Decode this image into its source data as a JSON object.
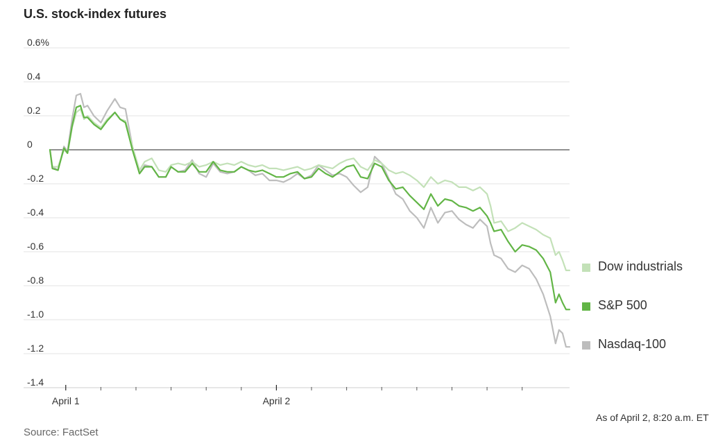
{
  "chart_data": {
    "type": "line",
    "title": "U.S. stock-index futures",
    "source": "Source: FactSet",
    "note": "As of April 2, 8:20 a.m. ET",
    "y_unit_suffix": "%",
    "ylim": [
      -1.4,
      0.6
    ],
    "yticks": [
      0.6,
      0.4,
      0.2,
      0,
      -0.2,
      -0.4,
      -0.6,
      -0.8,
      -1.0,
      -1.2,
      -1.4
    ],
    "ytick_labels": [
      "0.6%",
      "0.4",
      "0.2",
      "0",
      "-0.2",
      "-0.4",
      "-0.6",
      "-0.8",
      "-1.0",
      "-1.2",
      "-1.4"
    ],
    "x_day_labels": [
      "April 1",
      "April 2"
    ],
    "x_major_ticks": [
      1,
      7
    ],
    "x_minor_ticks": [
      2,
      3,
      4,
      5,
      6,
      8,
      9,
      10,
      11,
      12,
      13,
      14
    ],
    "xlim": [
      0.55,
      15.35
    ],
    "grid": true,
    "legend_position": "right",
    "series": [
      {
        "name": "Dow industrials",
        "color": "#c3e1b8",
        "points": [
          [
            0.55,
            0.0
          ],
          [
            0.62,
            -0.1
          ],
          [
            0.78,
            -0.1
          ],
          [
            0.95,
            0.0
          ],
          [
            1.05,
            -0.02
          ],
          [
            1.18,
            0.13
          ],
          [
            1.3,
            0.22
          ],
          [
            1.42,
            0.24
          ],
          [
            1.52,
            0.18
          ],
          [
            1.62,
            0.2
          ],
          [
            1.8,
            0.16
          ],
          [
            2.0,
            0.13
          ],
          [
            2.18,
            0.18
          ],
          [
            2.4,
            0.22
          ],
          [
            2.55,
            0.18
          ],
          [
            2.7,
            0.17
          ],
          [
            2.9,
            0.02
          ],
          [
            3.1,
            -0.12
          ],
          [
            3.25,
            -0.07
          ],
          [
            3.45,
            -0.05
          ],
          [
            3.65,
            -0.12
          ],
          [
            3.85,
            -0.13
          ],
          [
            4.0,
            -0.09
          ],
          [
            4.2,
            -0.08
          ],
          [
            4.4,
            -0.09
          ],
          [
            4.6,
            -0.07
          ],
          [
            4.8,
            -0.1
          ],
          [
            5.0,
            -0.09
          ],
          [
            5.2,
            -0.07
          ],
          [
            5.4,
            -0.09
          ],
          [
            5.6,
            -0.08
          ],
          [
            5.8,
            -0.09
          ],
          [
            6.0,
            -0.07
          ],
          [
            6.2,
            -0.09
          ],
          [
            6.4,
            -0.1
          ],
          [
            6.6,
            -0.09
          ],
          [
            6.8,
            -0.11
          ],
          [
            7.0,
            -0.11
          ],
          [
            7.2,
            -0.12
          ],
          [
            7.4,
            -0.11
          ],
          [
            7.6,
            -0.1
          ],
          [
            7.8,
            -0.12
          ],
          [
            8.0,
            -0.11
          ],
          [
            8.2,
            -0.09
          ],
          [
            8.4,
            -0.1
          ],
          [
            8.6,
            -0.11
          ],
          [
            8.8,
            -0.08
          ],
          [
            9.0,
            -0.06
          ],
          [
            9.2,
            -0.05
          ],
          [
            9.4,
            -0.1
          ],
          [
            9.6,
            -0.12
          ],
          [
            9.8,
            -0.06
          ],
          [
            10.0,
            -0.08
          ],
          [
            10.2,
            -0.12
          ],
          [
            10.4,
            -0.14
          ],
          [
            10.6,
            -0.13
          ],
          [
            10.8,
            -0.15
          ],
          [
            11.0,
            -0.18
          ],
          [
            11.2,
            -0.22
          ],
          [
            11.4,
            -0.16
          ],
          [
            11.6,
            -0.2
          ],
          [
            11.8,
            -0.18
          ],
          [
            12.0,
            -0.19
          ],
          [
            12.2,
            -0.22
          ],
          [
            12.4,
            -0.22
          ],
          [
            12.6,
            -0.24
          ],
          [
            12.8,
            -0.22
          ],
          [
            13.0,
            -0.26
          ],
          [
            13.1,
            -0.33
          ],
          [
            13.2,
            -0.43
          ],
          [
            13.4,
            -0.42
          ],
          [
            13.6,
            -0.48
          ],
          [
            13.8,
            -0.46
          ],
          [
            14.0,
            -0.43
          ],
          [
            14.2,
            -0.45
          ],
          [
            14.4,
            -0.47
          ],
          [
            14.6,
            -0.5
          ],
          [
            14.8,
            -0.52
          ],
          [
            14.95,
            -0.62
          ],
          [
            15.05,
            -0.6
          ],
          [
            15.15,
            -0.65
          ],
          [
            15.25,
            -0.71
          ],
          [
            15.35,
            -0.71
          ]
        ]
      },
      {
        "name": "S&P 500",
        "color": "#62b546",
        "points": [
          [
            0.55,
            0.0
          ],
          [
            0.62,
            -0.11
          ],
          [
            0.78,
            -0.12
          ],
          [
            0.95,
            0.01
          ],
          [
            1.05,
            -0.02
          ],
          [
            1.18,
            0.14
          ],
          [
            1.3,
            0.25
          ],
          [
            1.42,
            0.26
          ],
          [
            1.52,
            0.19
          ],
          [
            1.62,
            0.19
          ],
          [
            1.8,
            0.15
          ],
          [
            2.0,
            0.12
          ],
          [
            2.18,
            0.17
          ],
          [
            2.4,
            0.22
          ],
          [
            2.55,
            0.18
          ],
          [
            2.7,
            0.16
          ],
          [
            2.9,
            0.0
          ],
          [
            3.1,
            -0.14
          ],
          [
            3.25,
            -0.1
          ],
          [
            3.45,
            -0.1
          ],
          [
            3.65,
            -0.16
          ],
          [
            3.85,
            -0.16
          ],
          [
            4.0,
            -0.1
          ],
          [
            4.2,
            -0.13
          ],
          [
            4.4,
            -0.13
          ],
          [
            4.6,
            -0.08
          ],
          [
            4.8,
            -0.13
          ],
          [
            5.0,
            -0.13
          ],
          [
            5.2,
            -0.07
          ],
          [
            5.4,
            -0.12
          ],
          [
            5.6,
            -0.13
          ],
          [
            5.8,
            -0.13
          ],
          [
            6.0,
            -0.1
          ],
          [
            6.2,
            -0.12
          ],
          [
            6.4,
            -0.13
          ],
          [
            6.6,
            -0.12
          ],
          [
            6.8,
            -0.14
          ],
          [
            7.0,
            -0.16
          ],
          [
            7.2,
            -0.16
          ],
          [
            7.4,
            -0.14
          ],
          [
            7.6,
            -0.13
          ],
          [
            7.8,
            -0.17
          ],
          [
            8.0,
            -0.16
          ],
          [
            8.2,
            -0.11
          ],
          [
            8.4,
            -0.14
          ],
          [
            8.6,
            -0.16
          ],
          [
            8.8,
            -0.13
          ],
          [
            9.0,
            -0.1
          ],
          [
            9.2,
            -0.09
          ],
          [
            9.4,
            -0.16
          ],
          [
            9.6,
            -0.17
          ],
          [
            9.8,
            -0.08
          ],
          [
            10.0,
            -0.1
          ],
          [
            10.2,
            -0.18
          ],
          [
            10.4,
            -0.23
          ],
          [
            10.6,
            -0.22
          ],
          [
            10.8,
            -0.27
          ],
          [
            11.0,
            -0.31
          ],
          [
            11.2,
            -0.35
          ],
          [
            11.4,
            -0.26
          ],
          [
            11.6,
            -0.33
          ],
          [
            11.8,
            -0.29
          ],
          [
            12.0,
            -0.3
          ],
          [
            12.2,
            -0.33
          ],
          [
            12.4,
            -0.34
          ],
          [
            12.6,
            -0.36
          ],
          [
            12.8,
            -0.34
          ],
          [
            13.0,
            -0.39
          ],
          [
            13.1,
            -0.43
          ],
          [
            13.2,
            -0.48
          ],
          [
            13.4,
            -0.47
          ],
          [
            13.6,
            -0.54
          ],
          [
            13.8,
            -0.6
          ],
          [
            14.0,
            -0.56
          ],
          [
            14.2,
            -0.57
          ],
          [
            14.4,
            -0.59
          ],
          [
            14.6,
            -0.64
          ],
          [
            14.8,
            -0.72
          ],
          [
            14.95,
            -0.9
          ],
          [
            15.05,
            -0.85
          ],
          [
            15.15,
            -0.9
          ],
          [
            15.25,
            -0.94
          ],
          [
            15.35,
            -0.94
          ]
        ]
      },
      {
        "name": "Nasdaq-100",
        "color": "#bdbdbd",
        "points": [
          [
            0.55,
            0.0
          ],
          [
            0.62,
            -0.1
          ],
          [
            0.78,
            -0.12
          ],
          [
            0.95,
            0.02
          ],
          [
            1.05,
            -0.01
          ],
          [
            1.18,
            0.18
          ],
          [
            1.3,
            0.32
          ],
          [
            1.42,
            0.33
          ],
          [
            1.52,
            0.25
          ],
          [
            1.62,
            0.26
          ],
          [
            1.8,
            0.2
          ],
          [
            2.0,
            0.16
          ],
          [
            2.18,
            0.23
          ],
          [
            2.4,
            0.3
          ],
          [
            2.55,
            0.25
          ],
          [
            2.7,
            0.24
          ],
          [
            2.9,
            0.02
          ],
          [
            3.1,
            -0.14
          ],
          [
            3.25,
            -0.09
          ],
          [
            3.45,
            -0.1
          ],
          [
            3.65,
            -0.16
          ],
          [
            3.85,
            -0.16
          ],
          [
            4.0,
            -0.1
          ],
          [
            4.2,
            -0.13
          ],
          [
            4.4,
            -0.12
          ],
          [
            4.6,
            -0.06
          ],
          [
            4.8,
            -0.14
          ],
          [
            5.0,
            -0.16
          ],
          [
            5.2,
            -0.08
          ],
          [
            5.4,
            -0.13
          ],
          [
            5.6,
            -0.14
          ],
          [
            5.8,
            -0.13
          ],
          [
            6.0,
            -0.1
          ],
          [
            6.2,
            -0.12
          ],
          [
            6.4,
            -0.15
          ],
          [
            6.6,
            -0.14
          ],
          [
            6.8,
            -0.18
          ],
          [
            7.0,
            -0.18
          ],
          [
            7.2,
            -0.19
          ],
          [
            7.4,
            -0.17
          ],
          [
            7.6,
            -0.14
          ],
          [
            7.8,
            -0.17
          ],
          [
            8.0,
            -0.15
          ],
          [
            8.2,
            -0.09
          ],
          [
            8.4,
            -0.12
          ],
          [
            8.6,
            -0.15
          ],
          [
            8.8,
            -0.14
          ],
          [
            9.0,
            -0.16
          ],
          [
            9.2,
            -0.21
          ],
          [
            9.4,
            -0.25
          ],
          [
            9.6,
            -0.22
          ],
          [
            9.8,
            -0.04
          ],
          [
            10.0,
            -0.08
          ],
          [
            10.2,
            -0.17
          ],
          [
            10.4,
            -0.26
          ],
          [
            10.6,
            -0.29
          ],
          [
            10.8,
            -0.36
          ],
          [
            11.0,
            -0.4
          ],
          [
            11.2,
            -0.46
          ],
          [
            11.4,
            -0.34
          ],
          [
            11.6,
            -0.43
          ],
          [
            11.8,
            -0.37
          ],
          [
            12.0,
            -0.36
          ],
          [
            12.2,
            -0.41
          ],
          [
            12.4,
            -0.44
          ],
          [
            12.6,
            -0.46
          ],
          [
            12.8,
            -0.41
          ],
          [
            13.0,
            -0.45
          ],
          [
            13.1,
            -0.55
          ],
          [
            13.2,
            -0.62
          ],
          [
            13.4,
            -0.64
          ],
          [
            13.6,
            -0.7
          ],
          [
            13.8,
            -0.72
          ],
          [
            14.0,
            -0.68
          ],
          [
            14.2,
            -0.7
          ],
          [
            14.4,
            -0.76
          ],
          [
            14.6,
            -0.85
          ],
          [
            14.8,
            -0.98
          ],
          [
            14.95,
            -1.14
          ],
          [
            15.05,
            -1.06
          ],
          [
            15.15,
            -1.08
          ],
          [
            15.25,
            -1.16
          ],
          [
            15.35,
            -1.16
          ]
        ]
      }
    ]
  }
}
